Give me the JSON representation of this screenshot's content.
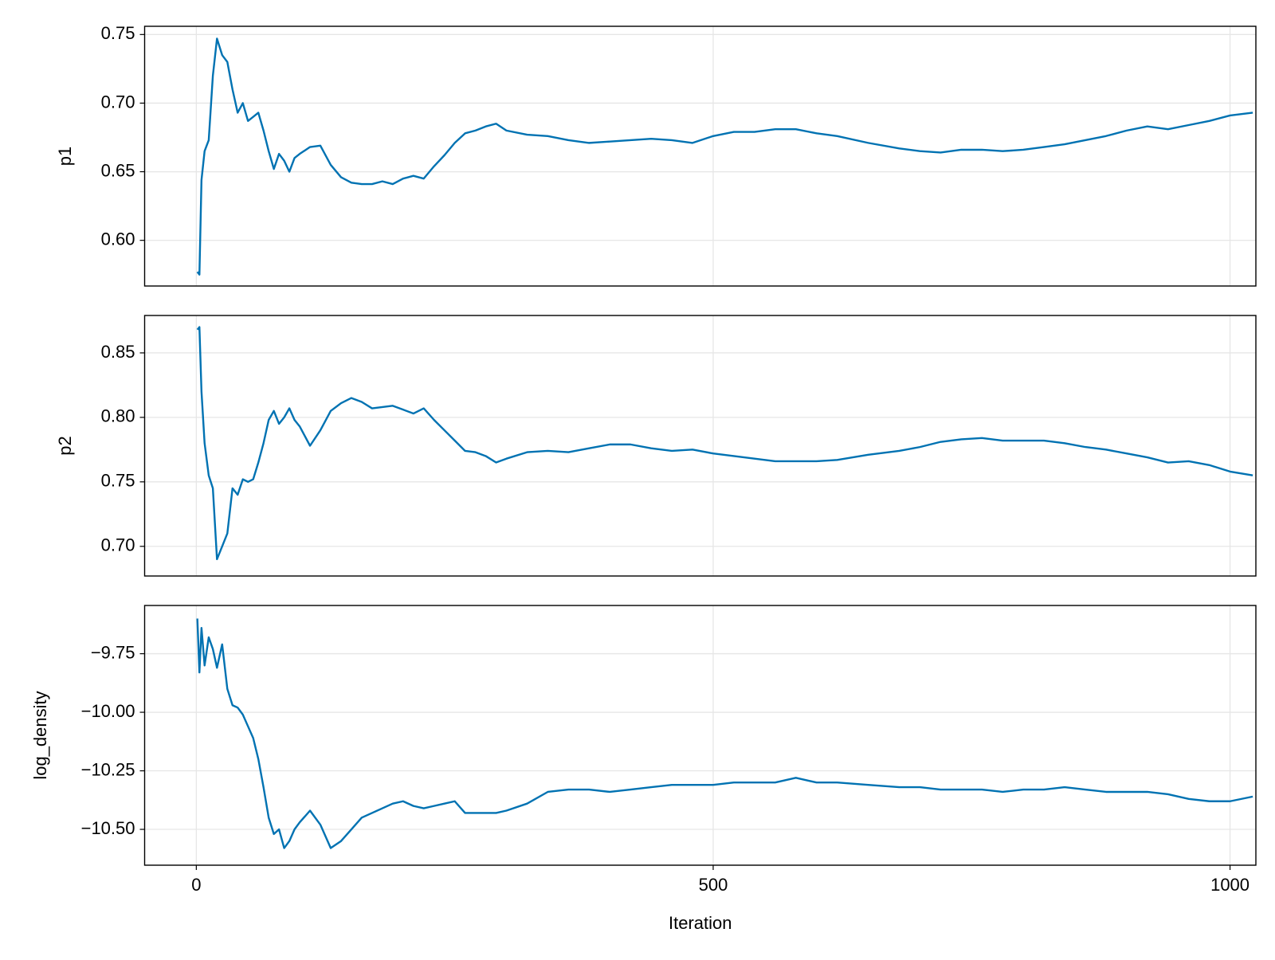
{
  "chart_data": [
    {
      "type": "line",
      "ylabel": "p1",
      "color": "#0072b2",
      "grid": true,
      "xlim": [
        -50,
        1025
      ],
      "xticks": [
        0,
        500,
        1000
      ],
      "ylim": [
        0.5667,
        0.756
      ],
      "yticks": [
        {
          "value": 0.6,
          "label": "0.60"
        },
        0.65,
        {
          "value": 0.7,
          "label": "0.70"
        },
        0.75
      ],
      "x": [
        1,
        3,
        5,
        8,
        12,
        16,
        20,
        25,
        30,
        35,
        40,
        45,
        50,
        55,
        60,
        65,
        70,
        75,
        80,
        85,
        90,
        95,
        100,
        110,
        120,
        130,
        140,
        150,
        160,
        170,
        180,
        190,
        200,
        210,
        220,
        230,
        240,
        250,
        260,
        270,
        280,
        290,
        300,
        320,
        340,
        360,
        380,
        400,
        420,
        440,
        460,
        480,
        500,
        520,
        540,
        560,
        580,
        600,
        620,
        650,
        680,
        700,
        720,
        740,
        760,
        780,
        800,
        820,
        840,
        860,
        880,
        900,
        920,
        940,
        960,
        980,
        1000,
        1022
      ],
      "values": [
        0.577,
        0.575,
        0.644,
        0.665,
        0.673,
        0.72,
        0.747,
        0.735,
        0.73,
        0.71,
        0.693,
        0.7,
        0.687,
        0.69,
        0.693,
        0.68,
        0.665,
        0.652,
        0.663,
        0.658,
        0.65,
        0.66,
        0.663,
        0.668,
        0.669,
        0.655,
        0.646,
        0.642,
        0.641,
        0.641,
        0.643,
        0.641,
        0.645,
        0.647,
        0.645,
        0.654,
        0.662,
        0.671,
        0.678,
        0.68,
        0.683,
        0.685,
        0.68,
        0.677,
        0.676,
        0.673,
        0.671,
        0.672,
        0.673,
        0.674,
        0.673,
        0.671,
        0.676,
        0.679,
        0.679,
        0.681,
        0.681,
        0.678,
        0.676,
        0.671,
        0.667,
        0.665,
        0.664,
        0.666,
        0.666,
        0.665,
        0.666,
        0.668,
        0.67,
        0.673,
        0.676,
        0.68,
        0.683,
        0.681,
        0.684,
        0.687,
        0.691,
        0.693
      ]
    },
    {
      "type": "line",
      "ylabel": "p2",
      "color": "#0072b2",
      "grid": true,
      "xlim": [
        -50,
        1025
      ],
      "xticks": [
        0,
        500,
        1000
      ],
      "ylim": [
        0.677,
        0.879
      ],
      "yticks": [
        {
          "value": 0.7,
          "label": "0.70"
        },
        0.75,
        {
          "value": 0.8,
          "label": "0.80"
        },
        0.85
      ],
      "x": [
        1,
        3,
        5,
        8,
        12,
        16,
        20,
        25,
        30,
        35,
        40,
        45,
        50,
        55,
        60,
        65,
        70,
        75,
        80,
        85,
        90,
        95,
        100,
        110,
        120,
        130,
        140,
        150,
        160,
        170,
        180,
        190,
        200,
        210,
        220,
        230,
        240,
        250,
        260,
        270,
        280,
        290,
        300,
        320,
        340,
        360,
        380,
        400,
        420,
        440,
        460,
        480,
        500,
        520,
        540,
        560,
        580,
        600,
        620,
        650,
        680,
        700,
        720,
        740,
        760,
        780,
        800,
        820,
        840,
        860,
        880,
        900,
        920,
        940,
        960,
        980,
        1000,
        1022
      ],
      "values": [
        0.868,
        0.87,
        0.82,
        0.78,
        0.755,
        0.745,
        0.69,
        0.7,
        0.71,
        0.745,
        0.74,
        0.752,
        0.75,
        0.752,
        0.765,
        0.78,
        0.798,
        0.805,
        0.795,
        0.8,
        0.807,
        0.798,
        0.793,
        0.778,
        0.79,
        0.805,
        0.811,
        0.815,
        0.812,
        0.807,
        0.808,
        0.809,
        0.806,
        0.803,
        0.807,
        0.798,
        0.79,
        0.782,
        0.774,
        0.773,
        0.77,
        0.765,
        0.768,
        0.773,
        0.774,
        0.773,
        0.776,
        0.779,
        0.779,
        0.776,
        0.774,
        0.775,
        0.772,
        0.77,
        0.768,
        0.766,
        0.766,
        0.766,
        0.767,
        0.771,
        0.774,
        0.777,
        0.781,
        0.783,
        0.784,
        0.782,
        0.782,
        0.782,
        0.78,
        0.777,
        0.775,
        0.772,
        0.769,
        0.765,
        0.766,
        0.763,
        0.758,
        0.755
      ]
    },
    {
      "type": "line",
      "ylabel": "log_density",
      "xlabel": "Iteration",
      "color": "#0072b2",
      "grid": true,
      "xlim": [
        -50,
        1025
      ],
      "xticks": [
        0,
        500,
        1000
      ],
      "ylim": [
        -10.653,
        -9.544
      ],
      "yticks": [
        {
          "value": -10.5,
          "label": "−10.50"
        },
        {
          "value": -10.25,
          "label": "−10.25"
        },
        {
          "value": -10,
          "label": "−10.00"
        },
        {
          "value": -9.75,
          "label": "−9.75"
        }
      ],
      "x": [
        1,
        3,
        5,
        8,
        12,
        16,
        20,
        25,
        30,
        35,
        40,
        45,
        50,
        55,
        60,
        65,
        70,
        75,
        80,
        85,
        90,
        95,
        100,
        110,
        120,
        130,
        140,
        150,
        160,
        170,
        180,
        190,
        200,
        210,
        220,
        230,
        240,
        250,
        260,
        270,
        280,
        290,
        300,
        320,
        340,
        360,
        380,
        400,
        420,
        440,
        460,
        480,
        500,
        520,
        540,
        560,
        580,
        600,
        620,
        650,
        680,
        700,
        720,
        740,
        760,
        780,
        800,
        820,
        840,
        860,
        880,
        900,
        920,
        940,
        960,
        980,
        1000,
        1022
      ],
      "values": [
        -9.6,
        -9.83,
        -9.64,
        -9.8,
        -9.68,
        -9.73,
        -9.81,
        -9.71,
        -9.9,
        -9.97,
        -9.98,
        -10.01,
        -10.06,
        -10.11,
        -10.2,
        -10.32,
        -10.45,
        -10.52,
        -10.5,
        -10.58,
        -10.55,
        -10.5,
        -10.47,
        -10.42,
        -10.48,
        -10.58,
        -10.55,
        -10.5,
        -10.45,
        -10.43,
        -10.41,
        -10.39,
        -10.38,
        -10.4,
        -10.41,
        -10.4,
        -10.39,
        -10.38,
        -10.43,
        -10.43,
        -10.43,
        -10.43,
        -10.42,
        -10.39,
        -10.34,
        -10.33,
        -10.33,
        -10.34,
        -10.33,
        -10.32,
        -10.31,
        -10.31,
        -10.31,
        -10.3,
        -10.3,
        -10.3,
        -10.28,
        -10.3,
        -10.3,
        -10.31,
        -10.32,
        -10.32,
        -10.33,
        -10.33,
        -10.33,
        -10.34,
        -10.33,
        -10.33,
        -10.32,
        -10.33,
        -10.34,
        -10.34,
        -10.34,
        -10.35,
        -10.37,
        -10.38,
        -10.38,
        -10.36
      ]
    }
  ]
}
